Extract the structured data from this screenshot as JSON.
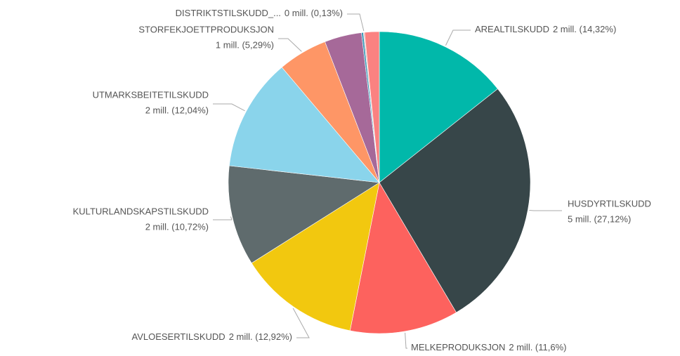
{
  "chart_data": {
    "type": "pie",
    "categories": [
      "AREALTILSKUDD",
      "HUSDYRTILSKUDD",
      "MELKEPRODUKSJON",
      "AVLOESERTILSKUDD",
      "KULTURLANDSKAPSTILSKUDD",
      "UTMARKSBEITETILSKUDD",
      "STORFEKJOETTPRODUKSJON",
      null,
      null,
      "DISTRIKTSTILSKUDD_...",
      null
    ],
    "values": [
      14.32,
      27.12,
      11.6,
      12.92,
      10.72,
      12.04,
      5.29,
      3.97,
      0.2,
      0.13,
      1.56
    ],
    "value_labels": [
      "2 mill. (14,32%)",
      "5 mill. (27,12%)",
      "2 mill. (11,6%)",
      "2 mill. (12,92%)",
      "2 mill. (10,72%)",
      "2 mill. (12,04%)",
      "1 mill. (5,29%)",
      null,
      null,
      "0 mill. (0,13%)",
      null
    ],
    "colors": [
      "#01b8aa",
      "#374649",
      "#fd625e",
      "#f2c80f",
      "#5f6b6d",
      "#8ad4eb",
      "#fe9666",
      "#a66999",
      "#3599b8",
      "#dfbfbf",
      "#fb8281"
    ]
  }
}
